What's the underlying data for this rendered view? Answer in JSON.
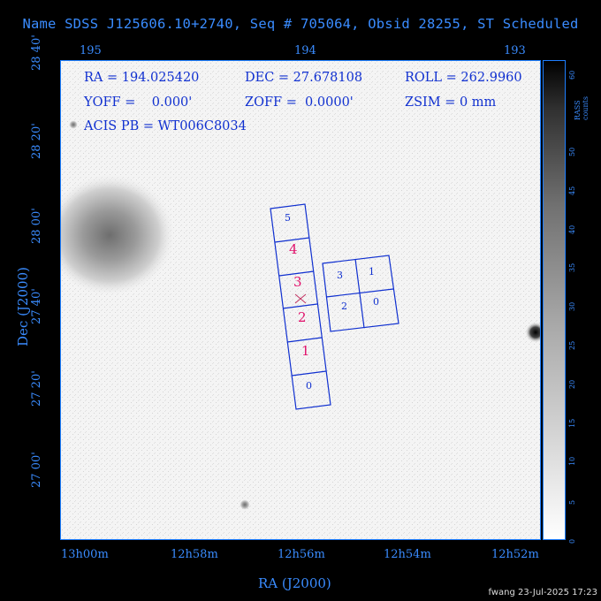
{
  "title": "Name SDSS J125606.10+2740, Seq # 705064, Obsid 28255, ST Scheduled",
  "info": {
    "ra": "RA = 194.025420",
    "dec": "DEC = 27.678108",
    "roll": "ROLL = 262.9960",
    "yoff": "YOFF =    0.000'",
    "zoff": "ZOFF =  0.0000'",
    "zsim": "ZSIM = 0 mm",
    "acis": "ACIS PB = WT006C8034"
  },
  "top_ticks": [
    "195",
    "194",
    "193"
  ],
  "bottom_ticks": [
    "13h00m",
    "12h58m",
    "12h56m",
    "12h54m",
    "12h52m"
  ],
  "left_ticks": [
    "28 40'",
    "28 20'",
    "28 00'",
    "27 40'",
    "27 20'",
    "27 00'"
  ],
  "x_axis_title": "RA (J2000)",
  "y_axis_title": "Dec (J2000)",
  "colorbar": {
    "label": "RASS counts",
    "ticks": [
      "0",
      "5",
      "10",
      "15",
      "20",
      "25",
      "30",
      "35",
      "40",
      "45",
      "50",
      "60"
    ]
  },
  "chips": {
    "s_chips": [
      "5",
      "4",
      "3",
      "2",
      "1",
      "0"
    ],
    "i_chips": [
      "3",
      "1",
      "2",
      "0"
    ]
  },
  "footer": "fwang 23-Jul-2025 17:23",
  "colors": {
    "axis": "#3a8cff",
    "chip_outline": "#1030d0",
    "highlight": "#e0106a",
    "background": "#000000"
  }
}
